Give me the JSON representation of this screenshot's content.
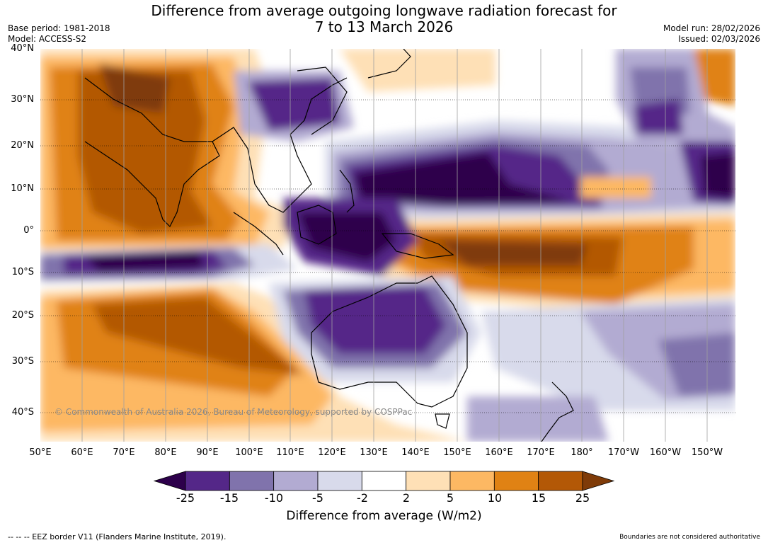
{
  "header": {
    "title_line1": "Difference from average outgoing longwave radiation forecast for",
    "title_line2": "7 to 13 March 2026",
    "base_period": "Base period: 1981-2018",
    "model": "Model: ACCESS-S2",
    "model_run": "Model run: 28/02/2026",
    "issued": "Issued: 02/03/2026"
  },
  "map": {
    "lat_labels": [
      "40°N",
      "30°N",
      "20°N",
      "10°N",
      "0°",
      "10°S",
      "20°S",
      "30°S",
      "40°S"
    ],
    "lon_labels": [
      "50°E",
      "60°E",
      "70°E",
      "80°E",
      "90°E",
      "100°E",
      "110°E",
      "120°E",
      "130°E",
      "140°E",
      "150°E",
      "160°E",
      "170°E",
      "180°",
      "170°W",
      "160°W",
      "150°W"
    ],
    "copyright": "© Commonwealth of Australia 2026, Bureau of Meteorology, supported by COSPPac"
  },
  "colorbar": {
    "ticks": [
      "-25",
      "-15",
      "-10",
      "-5",
      "-2",
      "2",
      "5",
      "10",
      "15",
      "25"
    ],
    "colors": [
      "#2d004b",
      "#542788",
      "#8073ac",
      "#b2abd2",
      "#d8daeb",
      "#ffffff",
      "#fee0b6",
      "#fdb863",
      "#e08214",
      "#b35806",
      "#7f3b08"
    ],
    "title": "Difference from average (W/m2)"
  },
  "footer": {
    "legend_note": "--  --  -- EEZ border V11 (Flanders Marine Institute, 2019).",
    "disclaimer": "Boundaries are not considered authoritative"
  }
}
